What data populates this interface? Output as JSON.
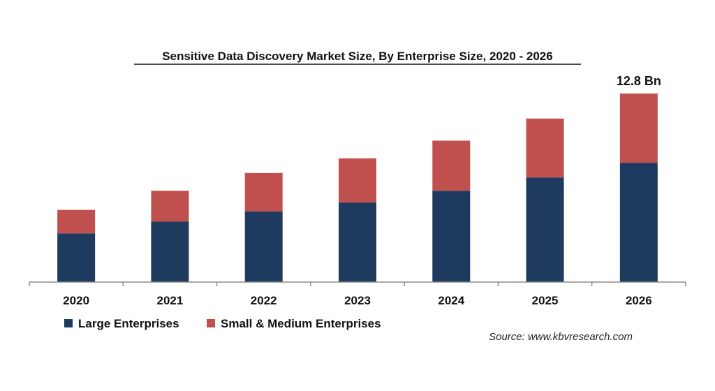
{
  "chart_data": {
    "type": "bar",
    "stacked": true,
    "title": "Sensitive Data Discovery Market Size, By Enterprise Size, 2020 - 2026",
    "xlabel": "",
    "ylabel": "",
    "categories": [
      "2020",
      "2021",
      "2022",
      "2023",
      "2024",
      "2025",
      "2026"
    ],
    "series": [
      {
        "name": "Large Enterprises",
        "color": "#1f3a5f",
        "values": [
          3.3,
          4.1,
          4.8,
          5.4,
          6.2,
          7.1,
          8.1
        ]
      },
      {
        "name": "Small & Medium Enterprises",
        "color": "#c0504d",
        "values": [
          1.6,
          2.1,
          2.6,
          3.0,
          3.4,
          4.0,
          4.7
        ]
      }
    ],
    "data_labels": [
      {
        "category": "2026",
        "text": "12.8 Bn"
      }
    ],
    "ylim": [
      0,
      14
    ],
    "grid": false,
    "legend_position": "bottom-left"
  },
  "source_text": "Source: www.kbvresearch.com"
}
